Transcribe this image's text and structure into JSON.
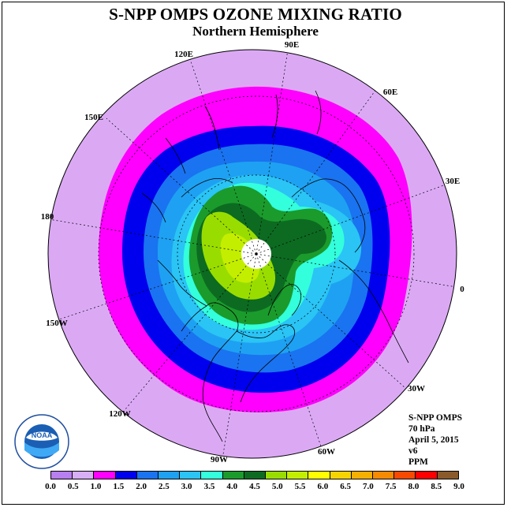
{
  "header": {
    "title": "S-NPP OMPS OZONE MIXING RATIO",
    "subtitle": "Northern Hemisphere"
  },
  "map": {
    "projection": "north polar stereographic",
    "longitude_labels": [
      "90E",
      "60E",
      "30E",
      "0",
      "30W",
      "60W",
      "90W",
      "120W",
      "150W",
      "180",
      "150E",
      "120E"
    ],
    "field_colors": {
      "outer": "#dba9f4",
      "ring_1_0_1_5": "#ff00ff",
      "ring_1_5_2_0": "#0000ee",
      "ring_2_0_2_5": "#1a73f0",
      "ring_2_5_3_0": "#1ea1f2",
      "ring_3_0_3_5": "#2ac4f5",
      "ring_3_5_4_0": "#33ffdd",
      "ring_4_0_4_5": "#1b9b2c",
      "ring_4_5_5_0": "#0c6b21",
      "ring_5_0_5_5": "#99dd00",
      "ring_5_5_6_0": "#c4ee00",
      "no_data_pole": "#ffffff"
    }
  },
  "info_box": {
    "line1": "S-NPP OMPS",
    "line2": "70 hPa",
    "line3": "April 5, 2015",
    "line4": "v6",
    "line5": "PPM"
  },
  "logo": {
    "icon": "noaa-logo-icon",
    "text": "NOAA",
    "ring_text": "NATIONAL OCEANIC AND ATMOSPHERIC ADMINISTRATION · U.S. DEPARTMENT OF COMMERCE"
  },
  "colorbar": {
    "unit": "PPM",
    "ticks": [
      "0.0",
      "0.5",
      "1.0",
      "1.5",
      "2.0",
      "2.5",
      "3.0",
      "3.5",
      "4.0",
      "4.5",
      "5.0",
      "5.5",
      "6.0",
      "6.5",
      "7.0",
      "7.5",
      "8.0",
      "8.5",
      "9.0"
    ],
    "colors": [
      "#b77ff0",
      "#d8aef6",
      "#ff00ff",
      "#0000ee",
      "#1a73f0",
      "#1ea1f2",
      "#2ac4f5",
      "#33ffdd",
      "#1b9b2c",
      "#0c6b21",
      "#99dd00",
      "#c4ee00",
      "#ffff00",
      "#f7d400",
      "#f7b000",
      "#f78a00",
      "#f74a00",
      "#ff0000",
      "#8b5a2b"
    ]
  }
}
